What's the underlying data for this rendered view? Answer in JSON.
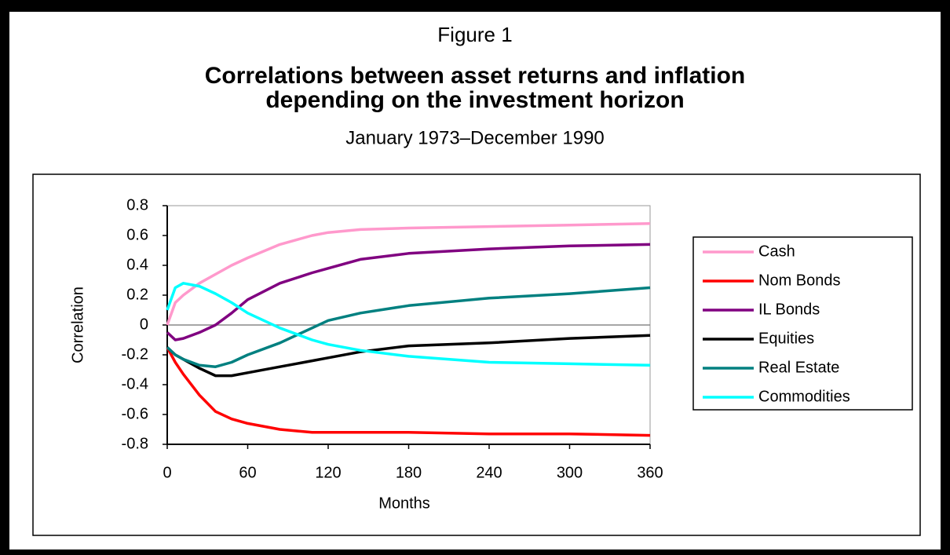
{
  "chart_data": {
    "type": "line",
    "figure_label": "Figure 1",
    "title": [
      "Correlations between asset returns and inflation",
      "depending on the investment horizon"
    ],
    "subtitle": "January 1973–December 1990",
    "x_label": "Months",
    "y_label": "Correlation",
    "x": [
      0,
      6,
      12,
      24,
      36,
      48,
      60,
      84,
      108,
      120,
      144,
      180,
      240,
      300,
      360
    ],
    "xlim": [
      0,
      360
    ],
    "xticks": [
      0,
      60,
      120,
      180,
      240,
      300,
      360
    ],
    "ylim": [
      -0.8,
      0.8
    ],
    "yticks": [
      0.8,
      0.6,
      0.4,
      0.2,
      0,
      -0.2,
      -0.4,
      -0.6,
      -0.8
    ],
    "legend": "right",
    "series": [
      {
        "name": "Cash",
        "color": "#ff99cc",
        "values": [
          0,
          0.15,
          0.2,
          0.28,
          0.34,
          0.4,
          0.45,
          0.54,
          0.6,
          0.62,
          0.64,
          0.65,
          0.66,
          0.67,
          0.68
        ]
      },
      {
        "name": "Nom Bonds",
        "color": "#ff0000",
        "values": [
          -0.15,
          -0.25,
          -0.33,
          -0.47,
          -0.58,
          -0.63,
          -0.66,
          -0.7,
          -0.72,
          -0.72,
          -0.72,
          -0.72,
          -0.73,
          -0.73,
          -0.74
        ]
      },
      {
        "name": "IL Bonds",
        "color": "#800080",
        "values": [
          -0.05,
          -0.1,
          -0.09,
          -0.05,
          0,
          0.08,
          0.17,
          0.28,
          0.35,
          0.38,
          0.44,
          0.48,
          0.51,
          0.53,
          0.54
        ]
      },
      {
        "name": "Equities",
        "color": "#000000",
        "values": [
          -0.15,
          -0.2,
          -0.23,
          -0.29,
          -0.34,
          -0.34,
          -0.32,
          -0.28,
          -0.24,
          -0.22,
          -0.18,
          -0.14,
          -0.12,
          -0.09,
          -0.07
        ]
      },
      {
        "name": "Real Estate",
        "color": "#008080",
        "values": [
          -0.15,
          -0.2,
          -0.23,
          -0.27,
          -0.28,
          -0.25,
          -0.2,
          -0.12,
          -0.02,
          0.03,
          0.08,
          0.13,
          0.18,
          0.21,
          0.25
        ]
      },
      {
        "name": "Commodities",
        "color": "#00ffff",
        "values": [
          0.1,
          0.25,
          0.28,
          0.26,
          0.21,
          0.15,
          0.08,
          -0.02,
          -0.1,
          -0.13,
          -0.17,
          -0.21,
          -0.25,
          -0.26,
          -0.27
        ]
      }
    ]
  }
}
